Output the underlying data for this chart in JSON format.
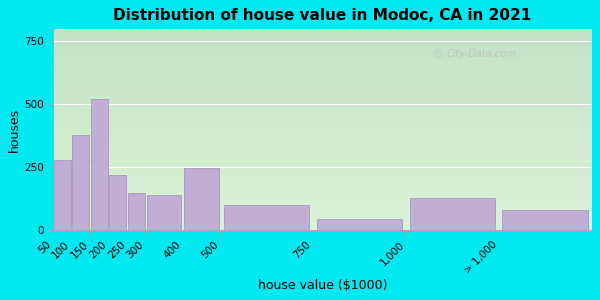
{
  "title": "Distribution of house value in Modoc, CA in 2021",
  "xlabel": "house value ($1000)",
  "ylabel": "houses",
  "bar_labels": [
    "50",
    "100",
    "150",
    "200",
    "250",
    "300",
    "400",
    "500",
    "750",
    "1,000",
    "> 1,000"
  ],
  "bar_centers": [
    75,
    125,
    175,
    225,
    275,
    350,
    450,
    625,
    875,
    1125,
    1375
  ],
  "bar_widths": [
    50,
    50,
    50,
    50,
    50,
    100,
    100,
    250,
    250,
    250,
    250
  ],
  "bar_tick_positions": [
    50,
    100,
    150,
    200,
    250,
    300,
    400,
    500,
    750,
    1000,
    1250
  ],
  "bar_values": [
    280,
    380,
    520,
    220,
    150,
    140,
    248,
    100,
    45,
    130,
    80
  ],
  "bar_color": "#c0aed4",
  "bar_edgecolor": "#a090bb",
  "ylim": [
    0,
    800
  ],
  "yticks": [
    0,
    250,
    500,
    750
  ],
  "bg_color": "#eaf5e8",
  "outer_bg": "#00e8f0",
  "title_fontsize": 11,
  "axis_label_fontsize": 9,
  "tick_fontsize": 7.5,
  "watermark": "City-Data.com"
}
